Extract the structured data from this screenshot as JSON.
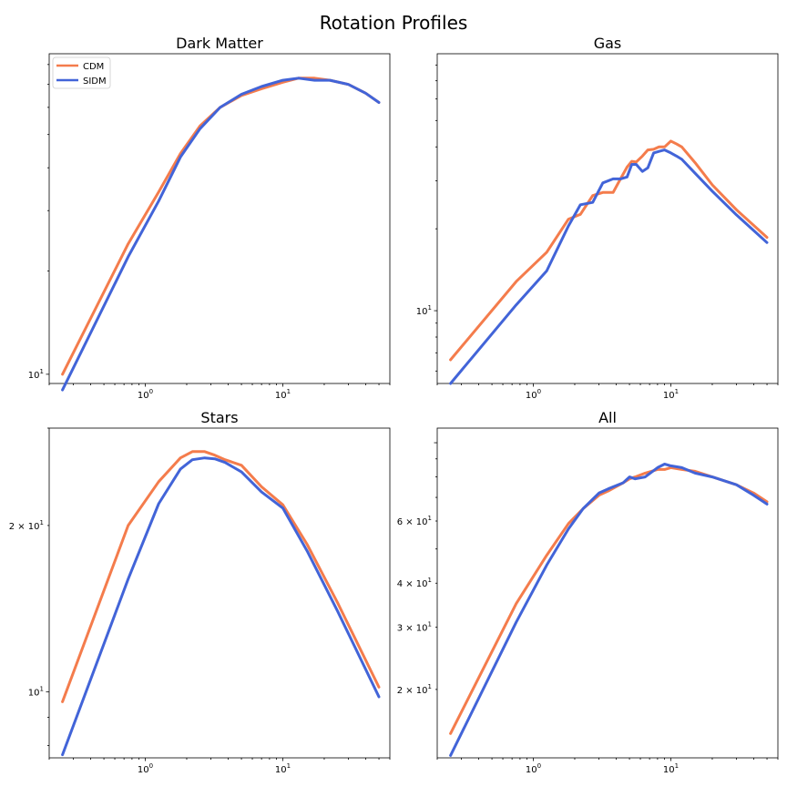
{
  "figure_title": "Rotation Profiles",
  "legend": {
    "items": [
      {
        "label": "CDM"
      },
      {
        "label": "SIDM"
      }
    ]
  },
  "colors": {
    "CDM": "#f47c4c",
    "SIDM": "#4264d8"
  },
  "chart_data": [
    {
      "type": "line",
      "title": "Dark Matter",
      "xscale": "log",
      "yscale": "log",
      "xlim": [
        0.2,
        60
      ],
      "ylim": [
        9.4,
        86
      ],
      "xticks": [
        {
          "value": 1,
          "label": "10^0"
        },
        {
          "value": 10,
          "label": "10^1"
        }
      ],
      "yticks": [
        {
          "value": 10,
          "label": "10^1"
        }
      ],
      "legend": "top-left",
      "series": [
        {
          "name": "CDM",
          "x": [
            0.25,
            0.75,
            1.25,
            1.8,
            2.5,
            3.5,
            5,
            7,
            10,
            13,
            17,
            22,
            30,
            40,
            50
          ],
          "y": [
            10.0,
            24.0,
            34.0,
            44.0,
            53.0,
            60.0,
            65.0,
            68.0,
            71.0,
            73.0,
            73.0,
            72.0,
            70.0,
            66.0,
            62.0
          ]
        },
        {
          "name": "SIDM",
          "x": [
            0.25,
            0.75,
            1.25,
            1.8,
            2.5,
            3.5,
            5,
            7,
            10,
            13,
            17,
            22,
            30,
            40,
            50
          ],
          "y": [
            9.0,
            22.0,
            32.0,
            43.0,
            52.0,
            60.0,
            65.5,
            69.0,
            72.0,
            73.0,
            72.0,
            72.0,
            70.0,
            66.0,
            62.0
          ]
        }
      ]
    },
    {
      "type": "line",
      "title": "Gas",
      "xscale": "log",
      "yscale": "log",
      "xlim": [
        0.2,
        60
      ],
      "ylim": [
        5.4,
        88
      ],
      "xticks": [
        {
          "value": 1,
          "label": "10^0"
        },
        {
          "value": 10,
          "label": "10^1"
        }
      ],
      "yticks": [
        {
          "value": 10,
          "label": "10^1"
        }
      ],
      "series": [
        {
          "name": "CDM",
          "x": [
            0.25,
            0.75,
            1.25,
            1.8,
            2.2,
            2.7,
            3.2,
            3.8,
            4.3,
            4.8,
            5.2,
            5.6,
            6.2,
            6.8,
            7.5,
            8.2,
            9,
            10,
            11,
            12,
            15,
            20,
            30,
            50
          ],
          "y": [
            6.6,
            12.8,
            16.4,
            21.7,
            22.6,
            26.5,
            27.2,
            27.2,
            30.5,
            33.7,
            35.4,
            35.2,
            37.0,
            39.0,
            39.2,
            40.0,
            40.0,
            42.0,
            41.0,
            40.0,
            35.0,
            29.0,
            23.5,
            18.6
          ]
        },
        {
          "name": "SIDM",
          "x": [
            0.25,
            0.75,
            1.25,
            1.8,
            2.2,
            2.7,
            3.2,
            3.8,
            4.3,
            4.8,
            5.2,
            5.6,
            6.2,
            6.8,
            7.5,
            8.2,
            9,
            10,
            11,
            12,
            15,
            20,
            30,
            50
          ],
          "y": [
            5.4,
            10.5,
            14.0,
            20.5,
            24.5,
            25.0,
            29.5,
            30.5,
            30.5,
            31.0,
            34.5,
            34.5,
            32.5,
            33.5,
            38.0,
            38.5,
            39.0,
            38.0,
            37.0,
            36.0,
            32.0,
            27.5,
            22.5,
            17.8
          ]
        }
      ]
    },
    {
      "type": "line",
      "title": "Stars",
      "xscale": "log",
      "yscale": "log",
      "xlim": [
        0.2,
        60
      ],
      "ylim": [
        7.6,
        30
      ],
      "xticks": [
        {
          "value": 1,
          "label": "10^0"
        },
        {
          "value": 10,
          "label": "10^1"
        }
      ],
      "yticks": [
        {
          "value": 10,
          "label": "10^1"
        },
        {
          "value": 20,
          "label": "2 × 10^1"
        }
      ],
      "series": [
        {
          "name": "CDM",
          "x": [
            0.25,
            0.75,
            1.25,
            1.8,
            2.2,
            2.7,
            3.2,
            3.8,
            5,
            7,
            10,
            15,
            25,
            50
          ],
          "y": [
            9.6,
            20.0,
            24.0,
            26.5,
            27.2,
            27.2,
            26.8,
            26.3,
            25.7,
            23.5,
            21.8,
            18.5,
            14.5,
            10.2
          ]
        },
        {
          "name": "SIDM",
          "x": [
            0.25,
            0.75,
            1.25,
            1.8,
            2.2,
            2.7,
            3.2,
            3.8,
            5,
            7,
            10,
            15,
            25,
            50
          ],
          "y": [
            7.7,
            16.0,
            21.9,
            25.3,
            26.3,
            26.5,
            26.4,
            26.0,
            25.0,
            23.0,
            21.5,
            18.0,
            14.0,
            9.8
          ]
        }
      ]
    },
    {
      "type": "line",
      "title": "All",
      "xscale": "log",
      "yscale": "log",
      "xlim": [
        0.2,
        60
      ],
      "ylim": [
        12.8,
        110
      ],
      "xticks": [
        {
          "value": 1,
          "label": "10^0"
        },
        {
          "value": 10,
          "label": "10^1"
        }
      ],
      "yticks": [
        {
          "value": 20,
          "label": "2 × 10^1"
        },
        {
          "value": 30,
          "label": "3 × 10^1"
        },
        {
          "value": 40,
          "label": "4 × 10^1"
        },
        {
          "value": 60,
          "label": "6 × 10^1"
        }
      ],
      "series": [
        {
          "name": "CDM",
          "x": [
            0.25,
            0.75,
            1.25,
            1.8,
            2.3,
            3,
            3.5,
            4.5,
            5,
            5.5,
            6.5,
            8,
            9,
            10,
            12,
            15,
            20,
            30,
            40,
            50
          ],
          "y": [
            15.0,
            35.0,
            48.0,
            59.0,
            65.0,
            71.0,
            73.0,
            77.0,
            79.0,
            80.0,
            82.0,
            84.0,
            84.0,
            85.0,
            84.0,
            83.0,
            80.0,
            76.0,
            72.0,
            68.0
          ]
        },
        {
          "name": "SIDM",
          "x": [
            0.25,
            0.75,
            1.25,
            1.8,
            2.3,
            3,
            3.5,
            4.5,
            5,
            5.5,
            6.5,
            8,
            9,
            10,
            12,
            15,
            20,
            30,
            40,
            50
          ],
          "y": [
            13.0,
            31.0,
            45.0,
            57.0,
            65.0,
            72.0,
            74.0,
            77.0,
            80.0,
            79.0,
            80.0,
            85.0,
            87.0,
            86.0,
            85.0,
            82.0,
            80.0,
            76.0,
            71.0,
            67.0
          ]
        }
      ]
    }
  ]
}
